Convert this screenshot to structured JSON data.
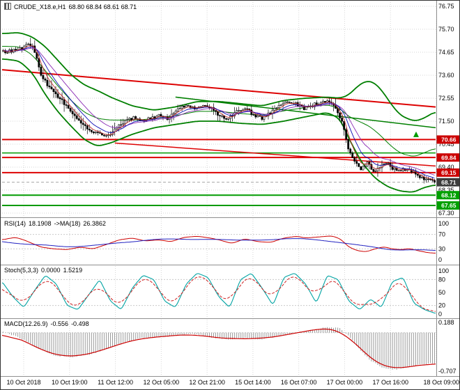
{
  "title": {
    "symbol": "CRUDE_X18.e,H1",
    "ohlc": "68.80 68.84 68.61 68.71"
  },
  "colors": {
    "background": "#ffffff",
    "grid": "#d6d6d6",
    "candle": "#000000",
    "band_green": "#007f00",
    "resistance_red": "#dd0202",
    "support_green": "#009a00",
    "badge_red": "#cc0000",
    "badge_green": "#00a000",
    "badge_current": "#3c3c3c",
    "ma_blue": "#0b0bb4",
    "ma_purple": "#8a2bb4",
    "ma_red": "#c03030",
    "rsi_line": "#cc0000",
    "rsi_ma": "#2020c0",
    "stoch_k": "#00a3a3",
    "stoch_d": "#cc2020",
    "macd_hist": "#9a9a9a",
    "macd_signal": "#cc0000",
    "axis_text": "#000000"
  },
  "chart_data": [
    {
      "type": "candlestick",
      "panel": "price",
      "symbol": "CRUDE_X18.e,H1",
      "ohlc_readout": {
        "open": "68.80",
        "high": "68.84",
        "low": "68.61",
        "close": "68.71"
      },
      "ylim": [
        67.3,
        76.75
      ],
      "price_ticks": [
        76.75,
        75.7,
        74.65,
        73.6,
        72.55,
        71.5,
        70.45,
        69.4,
        68.35,
        67.3
      ],
      "time_labels": [
        "10 Oct 2018",
        "10 Oct 19:00",
        "11 Oct 12:00",
        "12 Oct 05:00",
        "12 Oct 21:00",
        "15 Oct 14:00",
        "16 Oct 07:00",
        "17 Oct 00:00",
        "17 Oct 16:00",
        "18 Oct 09:00"
      ],
      "close_path": {
        "t": [
          0,
          0.02,
          0.045,
          0.06,
          0.07,
          0.08,
          0.09,
          0.105,
          0.12,
          0.14,
          0.16,
          0.18,
          0.2,
          0.22,
          0.24,
          0.26,
          0.28,
          0.3,
          0.32,
          0.34,
          0.36,
          0.38,
          0.4,
          0.42,
          0.44,
          0.46,
          0.48,
          0.5,
          0.52,
          0.54,
          0.56,
          0.58,
          0.6,
          0.62,
          0.64,
          0.66,
          0.68,
          0.7,
          0.72,
          0.74,
          0.755,
          0.77,
          0.785,
          0.8,
          0.815,
          0.83,
          0.845,
          0.86,
          0.875,
          0.89,
          0.905,
          0.92,
          0.935,
          0.95,
          0.965,
          0.98,
          1
        ],
        "v": [
          74.65,
          74.72,
          74.85,
          75.05,
          74.85,
          74.2,
          73.5,
          73.1,
          72.75,
          72.35,
          71.85,
          71.45,
          71.1,
          70.9,
          70.8,
          71.15,
          71.5,
          71.65,
          71.5,
          71.6,
          71.75,
          71.6,
          72,
          72.2,
          72.1,
          72.2,
          72.1,
          71.8,
          71.55,
          71.9,
          72.1,
          71.8,
          71.65,
          71.9,
          72.2,
          72.35,
          72.3,
          72.05,
          72.25,
          72.35,
          72.4,
          72.15,
          71.5,
          70.3,
          69.6,
          69.3,
          69.6,
          69.1,
          69.45,
          69.55,
          69.3,
          69.2,
          69.3,
          69.15,
          69,
          68.85,
          68.71
        ]
      },
      "band_upper": {
        "t": [
          0,
          0.04,
          0.07,
          0.1,
          0.13,
          0.16,
          0.19,
          0.22,
          0.25,
          0.3,
          0.35,
          0.4,
          0.45,
          0.5,
          0.55,
          0.6,
          0.65,
          0.7,
          0.75,
          0.78,
          0.8,
          0.82,
          0.84,
          0.86,
          0.88,
          0.9,
          0.92,
          0.95,
          0.97,
          1
        ],
        "v": [
          75.5,
          75.55,
          75.35,
          74.9,
          74.25,
          73.6,
          73.15,
          72.9,
          72.6,
          72.2,
          72,
          72.15,
          72.4,
          72.4,
          72.3,
          72.2,
          72.45,
          72.55,
          72.6,
          72.55,
          72.7,
          73.1,
          73.35,
          73.25,
          72.8,
          72.2,
          71.75,
          71.5,
          71.6,
          71.95
        ]
      },
      "band_lower": {
        "t": [
          0,
          0.04,
          0.07,
          0.1,
          0.13,
          0.16,
          0.19,
          0.22,
          0.25,
          0.3,
          0.35,
          0.4,
          0.45,
          0.5,
          0.55,
          0.6,
          0.65,
          0.7,
          0.75,
          0.78,
          0.8,
          0.83,
          0.86,
          0.89,
          0.92,
          0.95,
          0.97,
          1
        ],
        "v": [
          74.35,
          74.25,
          73.7,
          72.7,
          71.9,
          71.25,
          70.65,
          70.35,
          70.5,
          70.9,
          71.2,
          71.35,
          71.5,
          71.5,
          71.4,
          71.35,
          71.5,
          71.7,
          71.9,
          71.6,
          70.7,
          69.6,
          68.9,
          68.5,
          68.3,
          68.25,
          68.45,
          68.6
        ]
      },
      "horizontal_lines": [
        {
          "price": 70.66,
          "color": "#dd0202",
          "width": 2,
          "badge": "70.66",
          "badge_bg": "#cc0000"
        },
        {
          "price": 69.84,
          "color": "#dd0202",
          "width": 2,
          "badge": "69.84",
          "badge_bg": "#cc0000"
        },
        {
          "price": 69.15,
          "color": "#dd0202",
          "width": 2,
          "badge": "69.15",
          "badge_bg": "#cc0000"
        },
        {
          "price": 70.05,
          "color": "#009a00",
          "width": 1.5
        },
        {
          "price": 68.12,
          "color": "#009a00",
          "width": 2,
          "badge": "68.12",
          "badge_bg": "#00a000"
        },
        {
          "price": 67.65,
          "color": "#009a00",
          "width": 2,
          "badge": "67.65",
          "badge_bg": "#00a000"
        }
      ],
      "trendlines": [
        {
          "t1": 0,
          "p1": 73.85,
          "t2": 1,
          "p2": 72.15,
          "color": "#dd0202",
          "width": 2
        },
        {
          "t1": 0.26,
          "p1": 70.5,
          "t2": 1,
          "p2": 69.45,
          "color": "#dd0202",
          "width": 1.5
        },
        {
          "t1": 0.4,
          "p1": 72.6,
          "t2": 1,
          "p2": 71.2,
          "color": "#007f00",
          "width": 1.5
        }
      ],
      "current_price": {
        "value": "68.71",
        "badge_bg": "#3c3c3c"
      },
      "marker": {
        "t": 0.955,
        "price": 70.9,
        "shape": "up-arrow",
        "color": "#009a00"
      }
    },
    {
      "type": "line",
      "panel": "rsi",
      "name": "RSI(14)",
      "value": "18.1908",
      "ma_name": "->MA(18)",
      "ma_value": "26.3862",
      "ylim": [
        0,
        100
      ],
      "ticks": [
        100,
        70,
        30,
        0
      ],
      "levels": [
        70,
        30
      ],
      "series": {
        "t": [
          0,
          0.03,
          0.05,
          0.07,
          0.09,
          0.12,
          0.15,
          0.18,
          0.21,
          0.24,
          0.27,
          0.3,
          0.33,
          0.36,
          0.39,
          0.42,
          0.45,
          0.48,
          0.5,
          0.53,
          0.56,
          0.59,
          0.62,
          0.65,
          0.68,
          0.7,
          0.73,
          0.76,
          0.78,
          0.8,
          0.82,
          0.84,
          0.86,
          0.88,
          0.9,
          0.92,
          0.94,
          0.96,
          0.98,
          1
        ],
        "v": [
          55,
          62,
          55,
          45,
          35,
          30,
          28,
          35,
          30,
          42,
          55,
          60,
          52,
          55,
          50,
          62,
          65,
          60,
          55,
          45,
          58,
          50,
          48,
          60,
          65,
          60,
          63,
          66,
          58,
          35,
          25,
          22,
          30,
          36,
          30,
          28,
          31,
          25,
          20,
          18
        ]
      }
    },
    {
      "type": "line",
      "panel": "stochastic",
      "name": "Stoch(5,3,3)",
      "value": "0.0000",
      "signal_value": "1.5219",
      "ylim": [
        0,
        100
      ],
      "ticks": [
        100,
        80,
        50,
        20,
        0
      ],
      "levels": [
        80,
        20
      ],
      "series_k": {
        "t": [
          0,
          0.025,
          0.05,
          0.075,
          0.1,
          0.125,
          0.15,
          0.175,
          0.2,
          0.225,
          0.25,
          0.275,
          0.3,
          0.325,
          0.35,
          0.375,
          0.4,
          0.425,
          0.45,
          0.475,
          0.5,
          0.525,
          0.55,
          0.575,
          0.6,
          0.625,
          0.65,
          0.675,
          0.7,
          0.725,
          0.75,
          0.775,
          0.8,
          0.825,
          0.85,
          0.875,
          0.9,
          0.925,
          0.95,
          0.975,
          1
        ],
        "v": [
          75,
          40,
          15,
          55,
          90,
          70,
          20,
          10,
          45,
          80,
          30,
          10,
          60,
          90,
          80,
          30,
          15,
          70,
          95,
          85,
          40,
          15,
          80,
          95,
          60,
          20,
          85,
          95,
          70,
          25,
          90,
          80,
          30,
          10,
          35,
          15,
          75,
          85,
          25,
          10,
          1.5
        ]
      }
    },
    {
      "type": "histogram+line",
      "panel": "macd",
      "name": "MACD(12.26.9)",
      "value": "-0.556",
      "signal_value": "-0.498",
      "ticks": [
        0.188,
        -0.707
      ],
      "ylim": [
        -0.78,
        0.26
      ],
      "series": {
        "t": [
          0,
          0.04,
          0.08,
          0.12,
          0.16,
          0.2,
          0.24,
          0.28,
          0.32,
          0.36,
          0.4,
          0.44,
          0.48,
          0.52,
          0.56,
          0.6,
          0.64,
          0.68,
          0.72,
          0.75,
          0.78,
          0.8,
          0.82,
          0.85,
          0.88,
          0.91,
          0.94,
          0.97,
          1
        ],
        "v": [
          0.02,
          -0.1,
          -0.28,
          -0.42,
          -0.45,
          -0.4,
          -0.3,
          -0.18,
          -0.1,
          -0.08,
          -0.05,
          -0.02,
          -0.08,
          -0.12,
          -0.1,
          -0.12,
          -0.06,
          0,
          0.05,
          0.1,
          0.08,
          -0.05,
          -0.25,
          -0.5,
          -0.65,
          -0.68,
          -0.62,
          -0.58,
          -0.556
        ]
      }
    }
  ]
}
